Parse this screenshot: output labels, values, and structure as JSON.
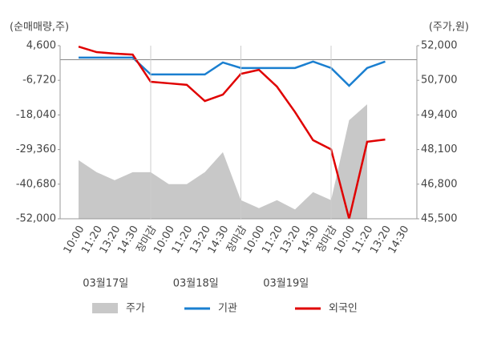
{
  "chart_data": {
    "type": "line",
    "y_axis_label": "(순매매량,주)",
    "y2_axis_label": "(주가,원)",
    "categories": [
      "10:00",
      "11:20",
      "13:20",
      "14:30",
      "장마감",
      "10:00",
      "11:20",
      "13:20",
      "14:30",
      "장마감",
      "10:00",
      "11:20",
      "13:20",
      "14:30",
      "장마감",
      "10:00",
      "11:20",
      "13:20",
      "14:30"
    ],
    "category_colors": [
      "#444",
      "#444",
      "#444",
      "#444",
      "#e00000",
      "#444",
      "#444",
      "#444",
      "#444",
      "#e00000",
      "#444",
      "#444",
      "#444",
      "#444",
      "#e00000",
      "#444",
      "#444",
      "#444",
      "#444"
    ],
    "date_labels": [
      "03월17일",
      "03월18일",
      "03월19일"
    ],
    "ylim": [
      -52000,
      4600
    ],
    "yticks": [
      {
        "value": 4600,
        "label": "4,600"
      },
      {
        "value": -6720,
        "label": "-6,720"
      },
      {
        "value": -18040,
        "label": "-18,040"
      },
      {
        "value": -29360,
        "label": "-29,360"
      },
      {
        "value": -40680,
        "label": "-40,680"
      },
      {
        "value": -52000,
        "label": "-52,000"
      }
    ],
    "y2lim": [
      45500,
      52000
    ],
    "y2ticks": [
      {
        "value": 52000,
        "label": "52,000"
      },
      {
        "value": 50700,
        "label": "50,700"
      },
      {
        "value": 49400,
        "label": "49,400"
      },
      {
        "value": 48100,
        "label": "48,100"
      },
      {
        "value": 46800,
        "label": "46,800"
      },
      {
        "value": 45500,
        "label": "45,500"
      }
    ],
    "series": [
      {
        "name": "주가",
        "type": "area",
        "axis": "y2",
        "color": "#c8c8c8",
        "values": [
          47700,
          47250,
          46950,
          47250,
          47250,
          46800,
          46800,
          47250,
          48000,
          46200,
          45900,
          46200,
          45850,
          46500,
          46200,
          49200,
          49800,
          null,
          null
        ]
      },
      {
        "name": "기관",
        "type": "line",
        "color": "#1a7fd0",
        "values": [
          700,
          700,
          700,
          700,
          -4800,
          -4800,
          -4800,
          -4800,
          -900,
          -2700,
          -2700,
          -2700,
          -2700,
          -600,
          -2700,
          -8500,
          -2700,
          -600,
          null
        ]
      },
      {
        "name": "외국인",
        "type": "line",
        "color": "#e00000",
        "values": [
          4300,
          2500,
          2000,
          1700,
          -7200,
          -7700,
          -8200,
          -13500,
          -11400,
          -4600,
          -3300,
          -8800,
          -17100,
          -26300,
          -29300,
          -52000,
          -26800,
          -26100,
          null
        ]
      }
    ]
  }
}
